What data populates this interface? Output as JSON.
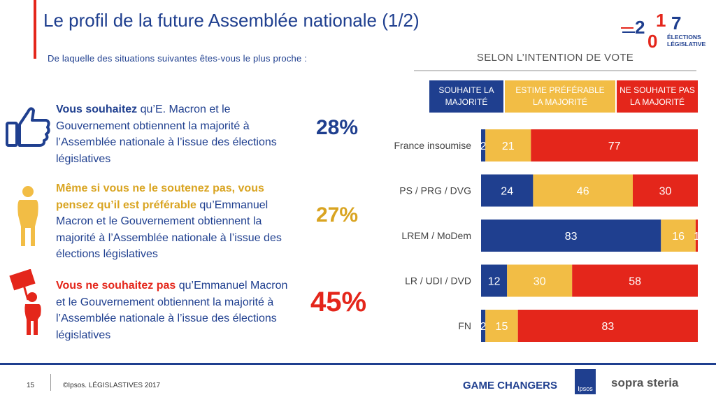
{
  "header": {
    "title": "Le profil de la future Assemblée nationale (1/2)",
    "question": "De laquelle des situations suivantes êtes-vous le plus proche :",
    "segment_label": "SELON L’INTENTION DE VOTE"
  },
  "logo": {
    "year_digits": [
      "2",
      "0",
      "1",
      "7"
    ],
    "line1": "ÉLECTIONS",
    "line2": "LÉGISLATIVES"
  },
  "legend": [
    {
      "label": "SOUHAITE LA MAJORITÉ",
      "color": "#1f3f8f"
    },
    {
      "label": "ESTIME PRÉFÉRABLE LA MAJORITÉ",
      "color": "#f2bd45"
    },
    {
      "label": "NE SOUHAITE PAS LA MAJORITÉ",
      "color": "#e4261b"
    }
  ],
  "statements": [
    {
      "bold": "Vous souhaitez",
      "rest": " qu’E. Macron et le Gouvernement obtiennent la majorité à l’Assemblée nationale à l’issue des élections législatives",
      "percent": "28%",
      "color": "#1f3f8f",
      "icon": "thumbs-up-icon"
    },
    {
      "bold": "Même si vous ne le soutenez pas, vous pensez qu’il est préférable",
      "rest": " qu’Emmanuel Macron et le Gouvernement obtiennent la majorité à l’Assemblée nationale à l’issue des élections législatives",
      "percent": "27%",
      "color": "#d9a421",
      "icon": "person-hands-behind-icon"
    },
    {
      "bold": "Vous ne souhaitez pas",
      "rest": " qu’Emmanuel Macron et le Gouvernement obtiennent la majorité à l’Assemblée nationale à l’issue des élections législatives",
      "percent": "45%",
      "color": "#e4261b",
      "icon": "protester-sign-icon"
    }
  ],
  "chart_data": {
    "type": "bar",
    "orientation": "horizontal",
    "stacked": true,
    "title": "SELON L’INTENTION DE VOTE",
    "categories": [
      "France insoumise",
      "PS / PRG / DVG",
      "LREM / MoDem",
      "LR / UDI / DVD",
      "FN"
    ],
    "series": [
      {
        "name": "SOUHAITE LA MAJORITÉ",
        "color": "#1f3f8f",
        "values": [
          2,
          24,
          83,
          12,
          2
        ]
      },
      {
        "name": "ESTIME PRÉFÉRABLE LA MAJORITÉ",
        "color": "#f2bd45",
        "values": [
          21,
          46,
          16,
          30,
          15
        ]
      },
      {
        "name": "NE SOUHAITE PAS LA MAJORITÉ",
        "color": "#e4261b",
        "values": [
          77,
          30,
          1,
          58,
          83
        ]
      }
    ],
    "xlim": [
      0,
      100
    ],
    "grid": false,
    "legend_position": "top"
  },
  "footer": {
    "page_number": "15",
    "copyright": "©Ipsos. LÉGISLASTIVES 2017",
    "game_changers": "GAME CHANGERS",
    "ipsos": "Ipsos",
    "sopra_steria": "sopra steria"
  }
}
